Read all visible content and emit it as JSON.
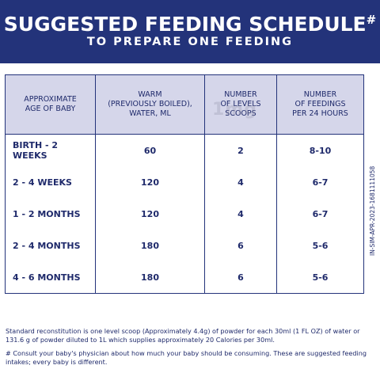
{
  "banner": {
    "title": "SUGGESTED FEEDING SCHEDULE",
    "title_mark": "#",
    "subtitle": "TO PREPARE ONE FEEDING"
  },
  "table": {
    "headers": [
      [
        "APPROXIMATE",
        "AGE OF BABY"
      ],
      [
        "WARM",
        "(PREVIOUSLY BOILED),",
        "WATER, ML"
      ],
      [
        "NUMBER",
        "OF LEVELS",
        "SCOOPS"
      ],
      [
        "NUMBER",
        "OF FEEDINGS",
        "PER 24 HOURS"
      ]
    ],
    "rows": [
      [
        "BIRTH - 2 WEEKS",
        "60",
        "2",
        "8-10"
      ],
      [
        "2 - 4 WEEKS",
        "120",
        "4",
        "6-7"
      ],
      [
        "1 - 2 MONTHS",
        "120",
        "4",
        "6-7"
      ],
      [
        "2 - 4 MONTHS",
        "180",
        "6",
        "5-6"
      ],
      [
        "4 - 6 MONTHS",
        "180",
        "6",
        "5-6"
      ]
    ]
  },
  "watermark": "1mg",
  "side_code": "IN-SIM-APR-2023-1681111058",
  "notes": {
    "reconstitution": "Standard reconstitution is one level scoop (Approximately 4.4g) of powder for each 30ml (1 FL OZ) of water or 131.6 g of powder diluted to 1L which supplies approximately 20 Calories per 30ml.",
    "consult": "# Consult your baby's physician about how much your baby should be consuming. These are suggested feeding intakes; every baby is different."
  },
  "colors": {
    "navy": "#23337a",
    "header_fill": "#d5d6ea",
    "text": "#1f2a6b",
    "background": "#ffffff"
  }
}
